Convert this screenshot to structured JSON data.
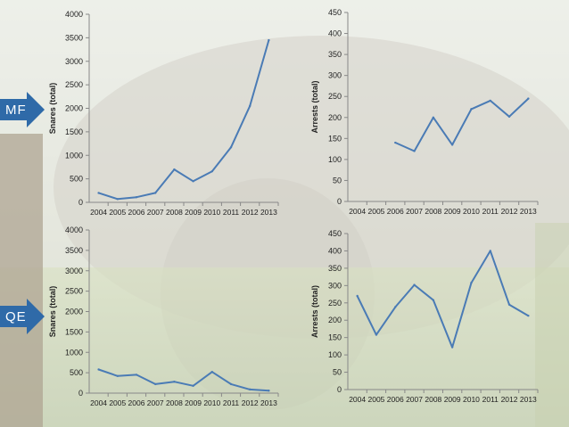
{
  "colors": {
    "series_line": "#4a7bb5",
    "tag_fill": "#2f6aa8",
    "axis_text": "#222222"
  },
  "row_labels": {
    "top": "MF",
    "bottom": "QE"
  },
  "chart_data": [
    {
      "type": "line",
      "x": [
        "2004",
        "2005",
        "2006",
        "2007",
        "2008",
        "2009",
        "2010",
        "2011",
        "2012",
        "2013"
      ],
      "series": [
        {
          "values": [
            200,
            70,
            110,
            200,
            700,
            450,
            660,
            1170,
            2050,
            3450
          ]
        }
      ],
      "ylabel": "Snares (total)",
      "ylim": [
        0,
        4000
      ],
      "yticks": [
        0,
        500,
        1000,
        1500,
        2000,
        2500,
        3000,
        3500,
        4000
      ]
    },
    {
      "type": "line",
      "x": [
        "2004",
        "2005",
        "2006",
        "2007",
        "2008",
        "2009",
        "2010",
        "2011",
        "2012",
        "2013"
      ],
      "series": [
        {
          "values": [
            null,
            null,
            140,
            120,
            200,
            135,
            220,
            240,
            202,
            245
          ]
        }
      ],
      "ylabel": "Arrests (total)",
      "ylim": [
        0,
        450
      ],
      "yticks": [
        0,
        50,
        100,
        150,
        200,
        250,
        300,
        350,
        400,
        450
      ]
    },
    {
      "type": "line",
      "x": [
        "2004",
        "2005",
        "2006",
        "2007",
        "2008",
        "2009",
        "2010",
        "2011",
        "2012",
        "2013"
      ],
      "series": [
        {
          "values": [
            580,
            420,
            450,
            220,
            280,
            180,
            520,
            220,
            90,
            60
          ]
        }
      ],
      "ylabel": "Snares (total)",
      "ylim": [
        0,
        4000
      ],
      "yticks": [
        0,
        500,
        1000,
        1500,
        2000,
        2500,
        3000,
        3500,
        4000
      ]
    },
    {
      "type": "line",
      "x": [
        "2004",
        "2005",
        "2006",
        "2007",
        "2008",
        "2009",
        "2010",
        "2011",
        "2012",
        "2013"
      ],
      "series": [
        {
          "values": [
            270,
            158,
            238,
            302,
            258,
            122,
            308,
            400,
            245,
            213
          ]
        }
      ],
      "ylabel": "Arrests (total)",
      "ylim": [
        0,
        450
      ],
      "yticks": [
        0,
        50,
        100,
        150,
        200,
        250,
        300,
        350,
        400,
        450
      ]
    }
  ]
}
